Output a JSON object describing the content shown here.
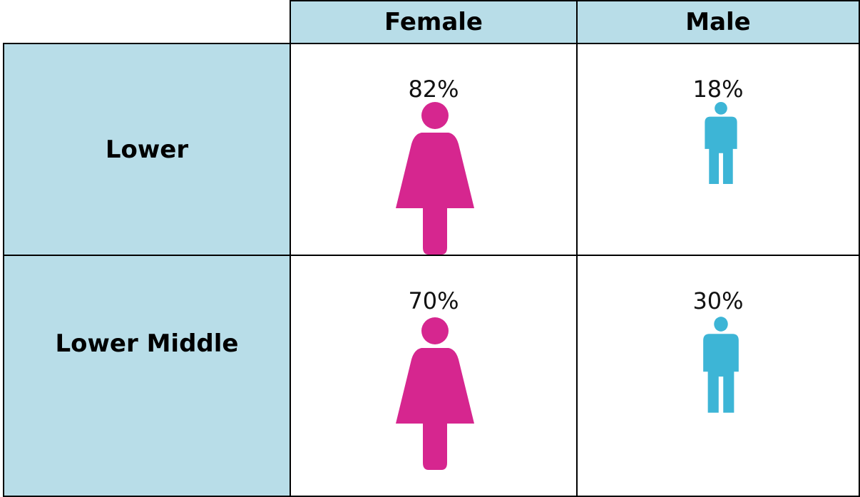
{
  "table": {
    "columns": [
      "Female",
      "Male"
    ],
    "rows": [
      {
        "label": "Lower",
        "cells": [
          "82%",
          "18%"
        ]
      },
      {
        "label": "Lower Middle",
        "cells": [
          "70%",
          "30%"
        ]
      }
    ]
  }
}
